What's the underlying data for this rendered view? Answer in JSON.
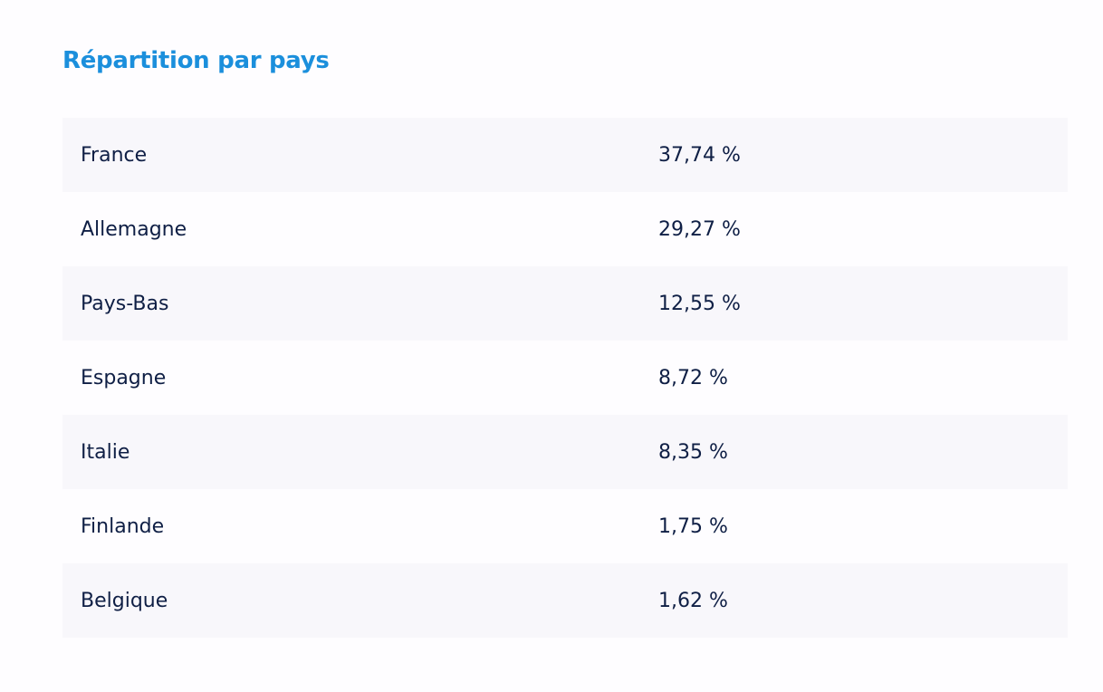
{
  "section": {
    "title": "Répartition par pays"
  },
  "table": {
    "rows": [
      {
        "country": "France",
        "value": "37,74 %"
      },
      {
        "country": "Allemagne",
        "value": "29,27 %"
      },
      {
        "country": "Pays-Bas",
        "value": "12,55 %"
      },
      {
        "country": "Espagne",
        "value": "8,72 %"
      },
      {
        "country": "Italie",
        "value": "8,35 %"
      },
      {
        "country": "Finlande",
        "value": "1,75 %"
      },
      {
        "country": "Belgique",
        "value": "1,62 %"
      }
    ]
  },
  "colors": {
    "title": "#1b8fdc",
    "text": "#0f1f45",
    "row_shade": "#f8f7fb",
    "background": "#fefdff"
  }
}
